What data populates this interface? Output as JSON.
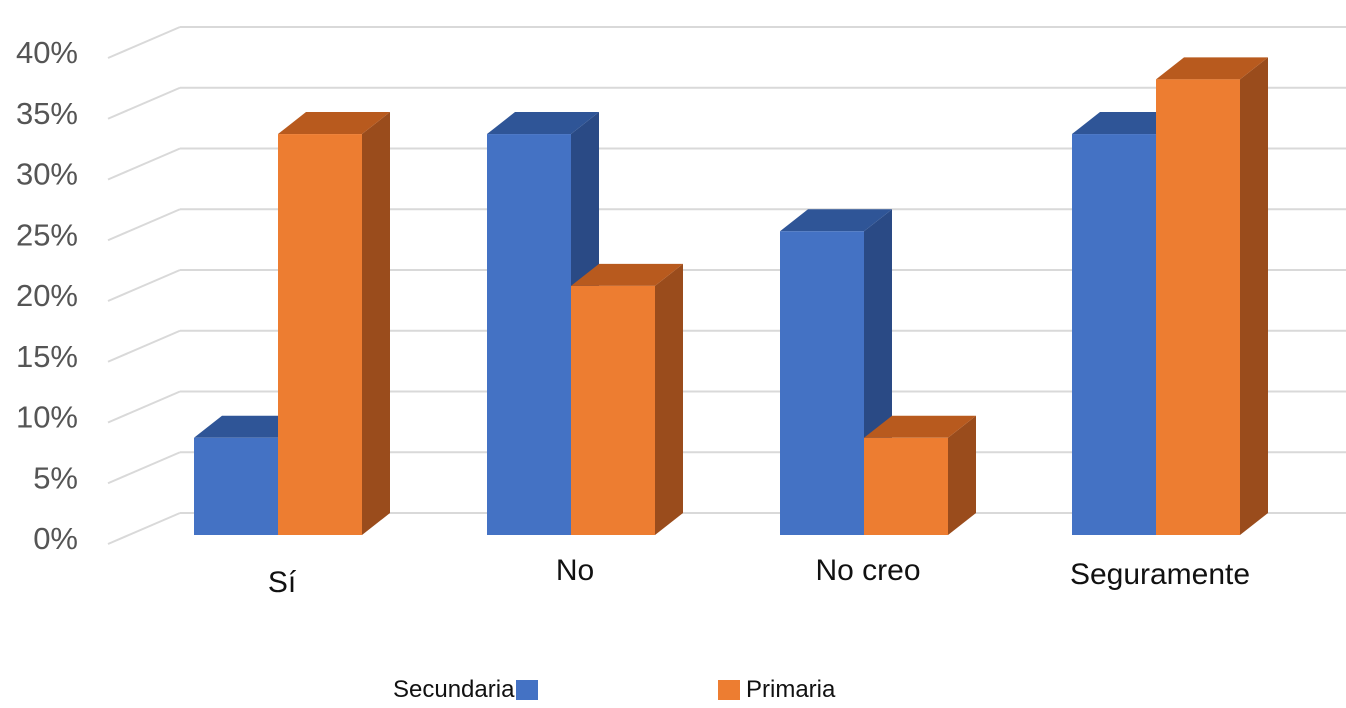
{
  "chart_data": {
    "type": "bar",
    "categories": [
      "Sí",
      "No",
      "No creo",
      "Seguramente"
    ],
    "series": [
      {
        "name": "Secundaria",
        "values": [
          8,
          33,
          25,
          33
        ],
        "color": "#4472C4",
        "side_color": "#2A4A85",
        "top_color": "#2F5597"
      },
      {
        "name": "Primaria",
        "values": [
          33,
          20.5,
          8,
          37.5
        ],
        "color": "#ED7D31",
        "side_color": "#9A4C1C",
        "top_color": "#B85A1E"
      }
    ],
    "yticks": [
      "0%",
      "5%",
      "10%",
      "15%",
      "20%",
      "25%",
      "30%",
      "35%",
      "40%"
    ],
    "ylim": [
      0,
      40
    ],
    "grid": true,
    "legend_position": "bottom"
  }
}
